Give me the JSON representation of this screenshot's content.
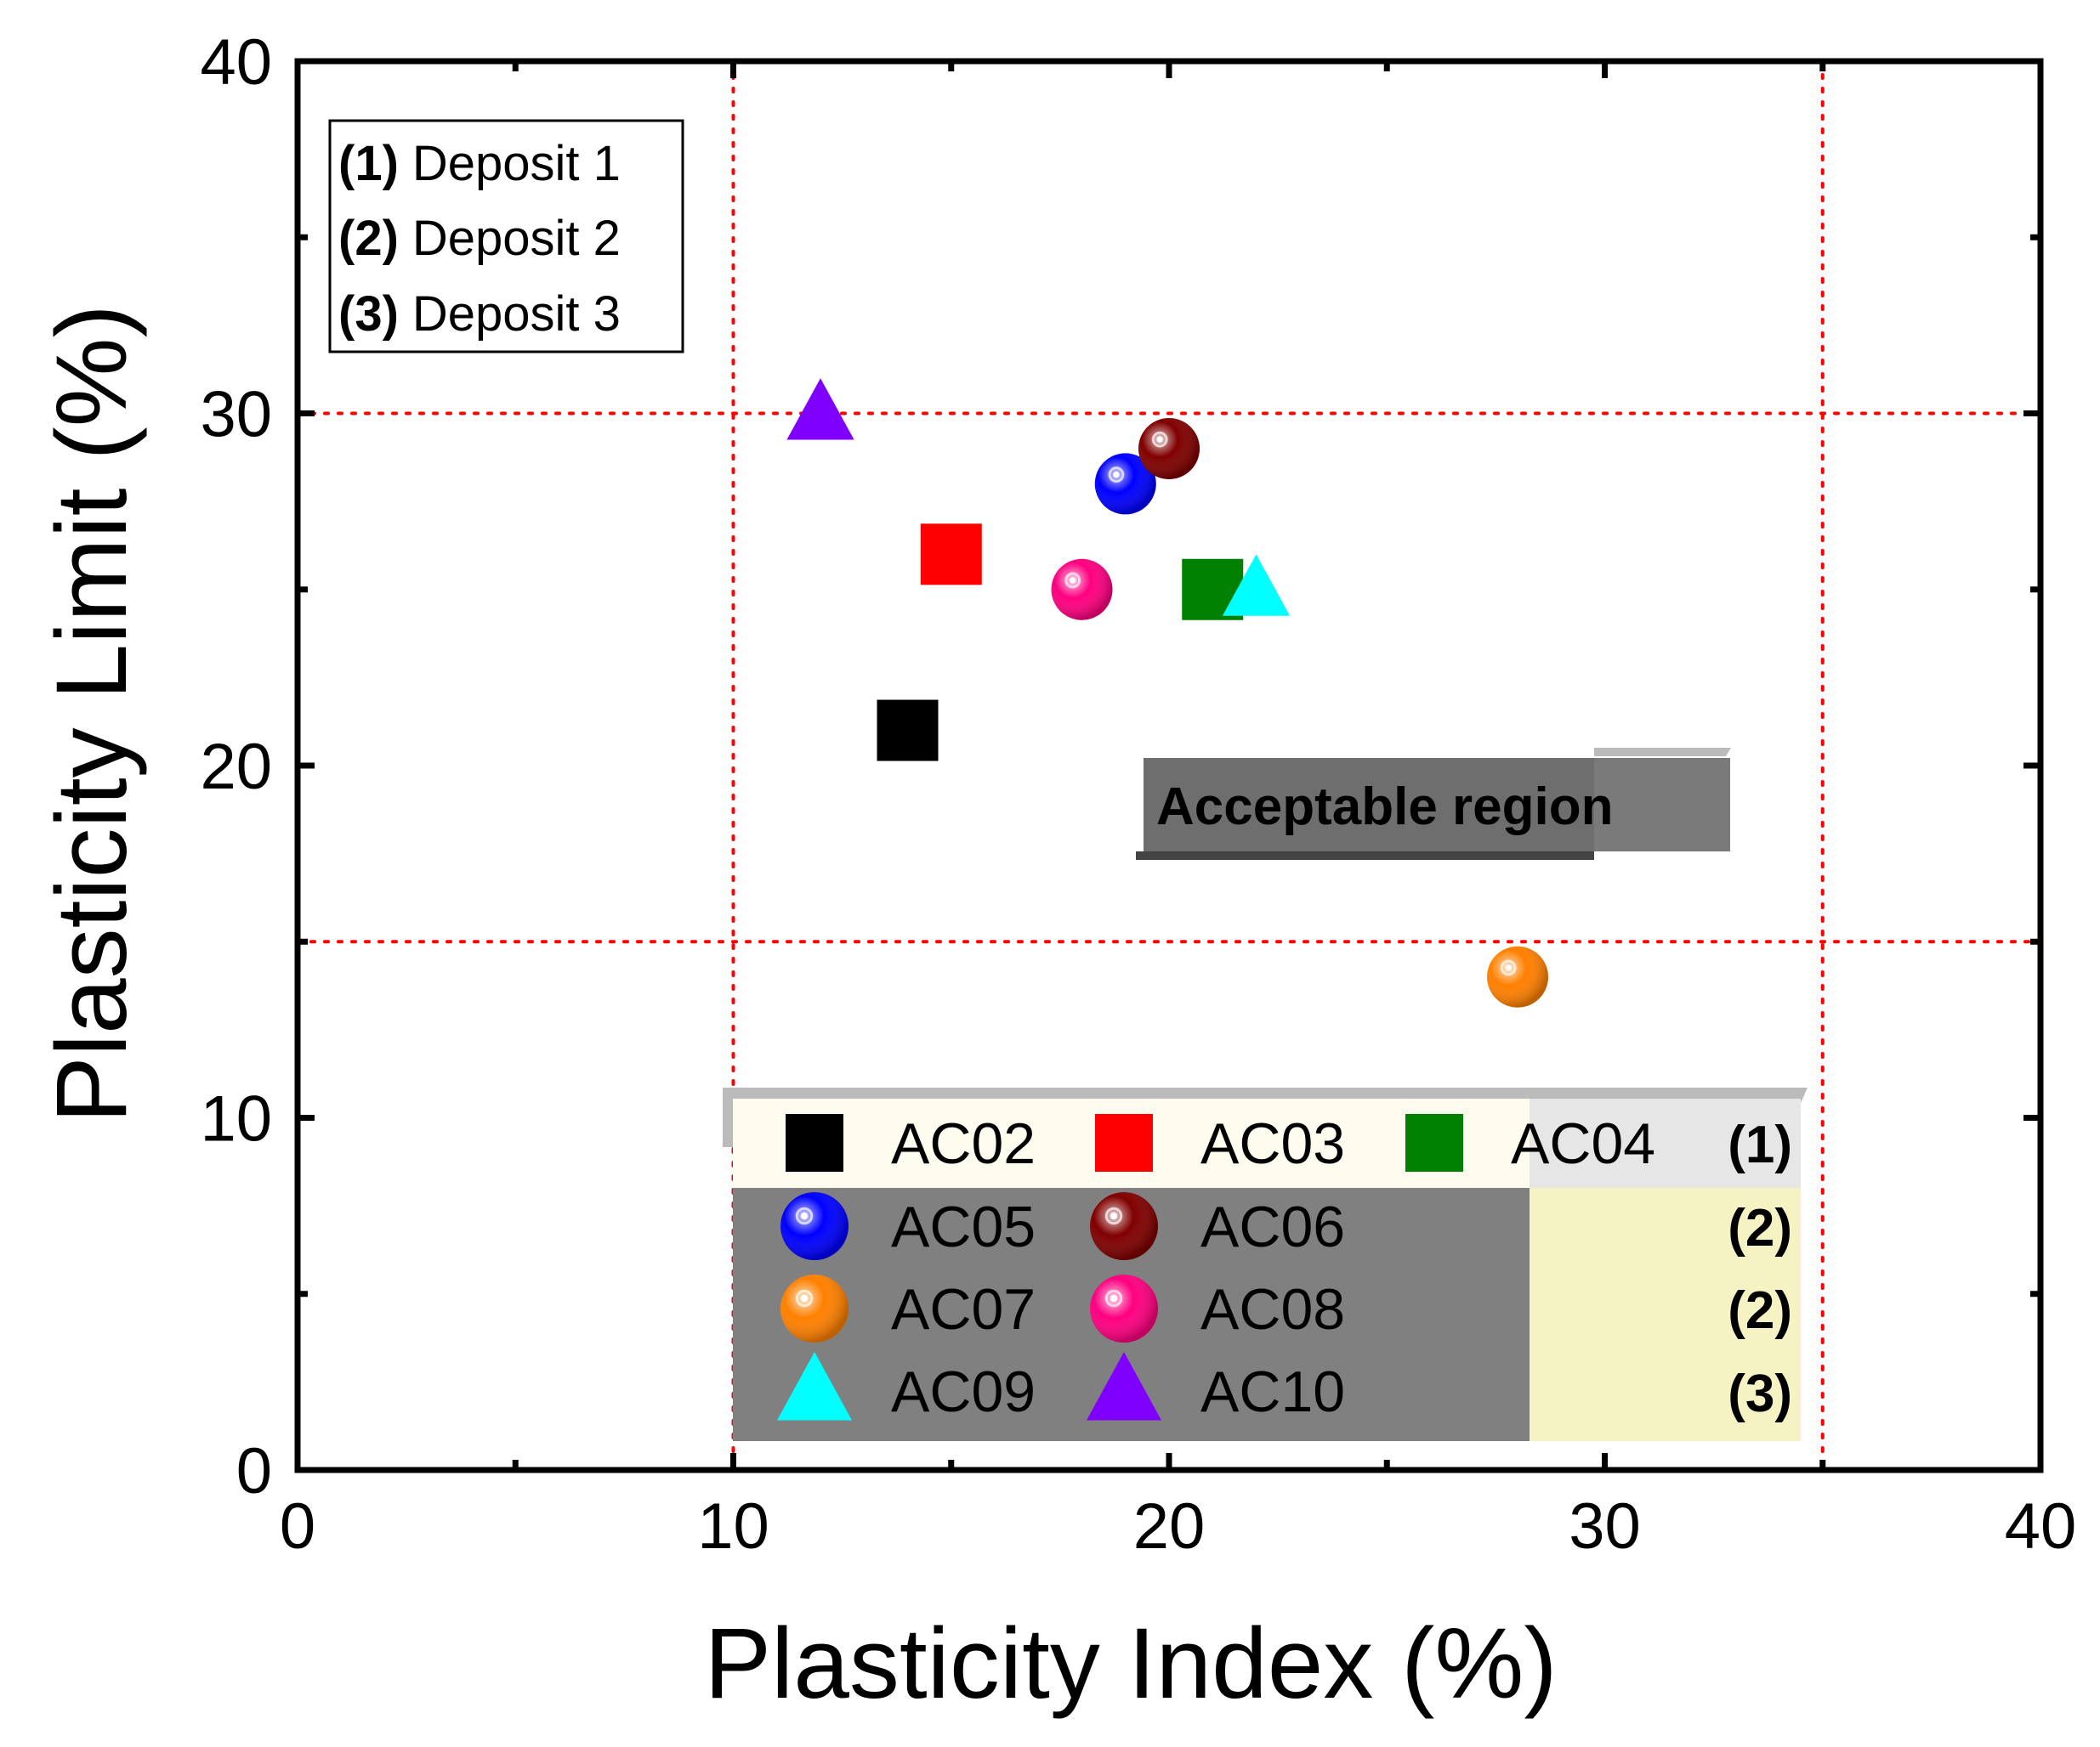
{
  "chart_data": {
    "type": "scatter",
    "xlabel": "Plasticity Index (%)",
    "ylabel": "Plasticity Limit (%)",
    "xlim": [
      0,
      40
    ],
    "ylim": [
      0,
      40
    ],
    "x_ticks": [
      "0",
      "10",
      "20",
      "30",
      "40"
    ],
    "y_ticks": [
      "0",
      "10",
      "20",
      "30",
      "40"
    ],
    "grid": false,
    "reference_lines": {
      "x": [
        10,
        35
      ],
      "y": [
        15,
        30
      ],
      "color": "#ff0000",
      "style": "dotted"
    },
    "region_annotation": "Acceptable region",
    "deposits": [
      {
        "num": "(1)",
        "name": "Deposit 1"
      },
      {
        "num": "(2)",
        "name": "Deposit 2"
      },
      {
        "num": "(3)",
        "name": "Deposit 3"
      }
    ],
    "legend_group_labels": [
      "(1)",
      "(2)",
      "(2)",
      "(3)"
    ],
    "series": [
      {
        "name": "AC02",
        "x": 14,
        "y": 21,
        "marker": "square",
        "color": "#000000"
      },
      {
        "name": "AC03",
        "x": 15,
        "y": 26,
        "marker": "square",
        "color": "#ff0000"
      },
      {
        "name": "AC04",
        "x": 21,
        "y": 25,
        "marker": "square",
        "color": "#008000"
      },
      {
        "name": "AC05",
        "x": 19,
        "y": 28,
        "marker": "sphere",
        "color": "#0000ff"
      },
      {
        "name": "AC06",
        "x": 20,
        "y": 29,
        "marker": "sphere",
        "color": "#800000"
      },
      {
        "name": "AC07",
        "x": 28,
        "y": 14,
        "marker": "sphere",
        "color": "#ff8000"
      },
      {
        "name": "AC08",
        "x": 18,
        "y": 25,
        "marker": "sphere",
        "color": "#ff0080"
      },
      {
        "name": "AC09",
        "x": 22,
        "y": 25,
        "marker": "triangle",
        "color": "#00ffff"
      },
      {
        "name": "AC10",
        "x": 12,
        "y": 30,
        "marker": "triangle",
        "color": "#8000ff"
      }
    ]
  }
}
